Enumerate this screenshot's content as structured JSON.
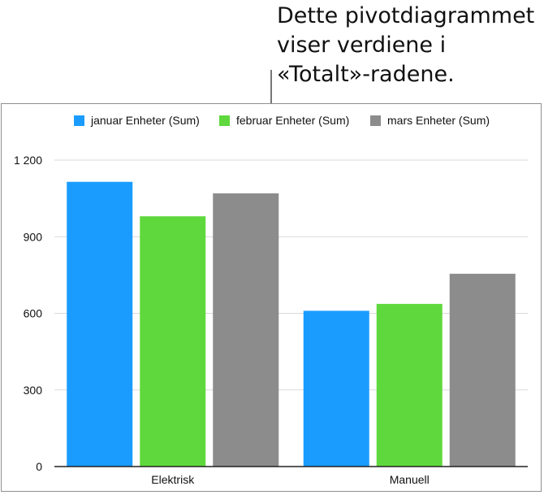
{
  "callout": {
    "lines": [
      "Dette pivotdiagrammet",
      "viser verdiene i",
      "«Totalt»-radene."
    ]
  },
  "chart_data": {
    "type": "bar",
    "categories": [
      "Elektrisk",
      "Manuell"
    ],
    "series": [
      {
        "name": "januar Enheter (Sum)",
        "color": "#1a9cff",
        "values": [
          1115,
          610
        ]
      },
      {
        "name": "februar Enheter (Sum)",
        "color": "#5fd83d",
        "values": [
          980,
          637
        ]
      },
      {
        "name": "mars Enheter (Sum)",
        "color": "#8c8c8c",
        "values": [
          1070,
          755
        ]
      }
    ],
    "yticks": [
      0,
      300,
      600,
      900,
      1200
    ],
    "ytick_labels": [
      "0",
      "300",
      "600",
      "900",
      "1 200"
    ],
    "ylim": [
      0,
      1200
    ],
    "grid": true,
    "legend_position": "top"
  }
}
